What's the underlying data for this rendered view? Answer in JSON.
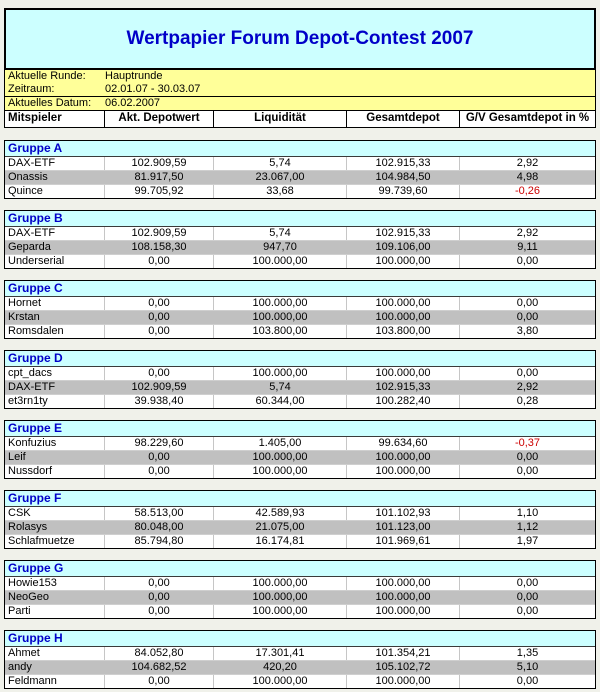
{
  "title": "Wertpapier Forum Depot-Contest 2007",
  "info": {
    "round_label": "Aktuelle Runde:",
    "round_value": "Hauptrunde",
    "period_label": "Zeitraum:",
    "period_value": "02.01.07 - 30.03.07",
    "date_label": "Aktuelles Datum:",
    "date_value": "06.02.2007"
  },
  "columns": [
    "Mitspieler",
    "Akt. Depotwert",
    "Liquidität",
    "Gesamtdepot",
    "G/V Gesamtdepot in %"
  ],
  "groups": [
    {
      "name": "Gruppe A",
      "rows": [
        {
          "player": "DAX-ETF",
          "values": [
            "102.909,59",
            "5,74",
            "102.915,33",
            "2,92"
          ]
        },
        {
          "player": "Onassis",
          "values": [
            "81.917,50",
            "23.067,00",
            "104.984,50",
            "4,98"
          ]
        },
        {
          "player": "Quince",
          "values": [
            "99.705,92",
            "33,68",
            "99.739,60",
            "-0,26"
          ]
        }
      ]
    },
    {
      "name": "Gruppe B",
      "rows": [
        {
          "player": "DAX-ETF",
          "values": [
            "102.909,59",
            "5,74",
            "102.915,33",
            "2,92"
          ]
        },
        {
          "player": "Geparda",
          "values": [
            "108.158,30",
            "947,70",
            "109.106,00",
            "9,11"
          ]
        },
        {
          "player": "Underserial",
          "values": [
            "0,00",
            "100.000,00",
            "100.000,00",
            "0,00"
          ]
        }
      ]
    },
    {
      "name": "Gruppe C",
      "rows": [
        {
          "player": "Hornet",
          "values": [
            "0,00",
            "100.000,00",
            "100.000,00",
            "0,00"
          ]
        },
        {
          "player": "Krstan",
          "values": [
            "0,00",
            "100.000,00",
            "100.000,00",
            "0,00"
          ]
        },
        {
          "player": "Romsdalen",
          "values": [
            "0,00",
            "103.800,00",
            "103.800,00",
            "3,80"
          ]
        }
      ]
    },
    {
      "name": "Gruppe D",
      "rows": [
        {
          "player": "cpt_dacs",
          "values": [
            "0,00",
            "100.000,00",
            "100.000,00",
            "0,00"
          ]
        },
        {
          "player": "DAX-ETF",
          "values": [
            "102.909,59",
            "5,74",
            "102.915,33",
            "2,92"
          ]
        },
        {
          "player": "et3rn1ty",
          "values": [
            "39.938,40",
            "60.344,00",
            "100.282,40",
            "0,28"
          ]
        }
      ]
    },
    {
      "name": "Gruppe E",
      "rows": [
        {
          "player": "Konfuzius",
          "values": [
            "98.229,60",
            "1.405,00",
            "99.634,60",
            "-0,37"
          ]
        },
        {
          "player": "Leif",
          "values": [
            "0,00",
            "100.000,00",
            "100.000,00",
            "0,00"
          ]
        },
        {
          "player": "Nussdorf",
          "values": [
            "0,00",
            "100.000,00",
            "100.000,00",
            "0,00"
          ]
        }
      ]
    },
    {
      "name": "Gruppe F",
      "rows": [
        {
          "player": "CSK",
          "values": [
            "58.513,00",
            "42.589,93",
            "101.102,93",
            "1,10"
          ]
        },
        {
          "player": "Rolasys",
          "values": [
            "80.048,00",
            "21.075,00",
            "101.123,00",
            "1,12"
          ]
        },
        {
          "player": "Schlafmuetze",
          "values": [
            "85.794,80",
            "16.174,81",
            "101.969,61",
            "1,97"
          ]
        }
      ]
    },
    {
      "name": "Gruppe G",
      "rows": [
        {
          "player": "Howie153",
          "values": [
            "0,00",
            "100.000,00",
            "100.000,00",
            "0,00"
          ]
        },
        {
          "player": "NeoGeo",
          "values": [
            "0,00",
            "100.000,00",
            "100.000,00",
            "0,00"
          ]
        },
        {
          "player": "Parti",
          "values": [
            "0,00",
            "100.000,00",
            "100.000,00",
            "0,00"
          ]
        }
      ]
    },
    {
      "name": "Gruppe H",
      "rows": [
        {
          "player": "Ahmet",
          "values": [
            "84.052,80",
            "17.301,41",
            "101.354,21",
            "1,35"
          ]
        },
        {
          "player": "andy",
          "values": [
            "104.682,52",
            "420,20",
            "105.102,72",
            "5,10"
          ]
        },
        {
          "player": "Feldmann",
          "values": [
            "0,00",
            "100.000,00",
            "100.000,00",
            "0,00"
          ]
        }
      ]
    }
  ],
  "colors": {
    "title_blue": "#0000c8",
    "group_blue": "#0000c8",
    "negative_red": "#cc0000",
    "banner_cyan": "#ccffff",
    "info_yellow": "#ffff99",
    "row_silver": "#c0c0c0",
    "page_background": "#f0f1ea"
  }
}
